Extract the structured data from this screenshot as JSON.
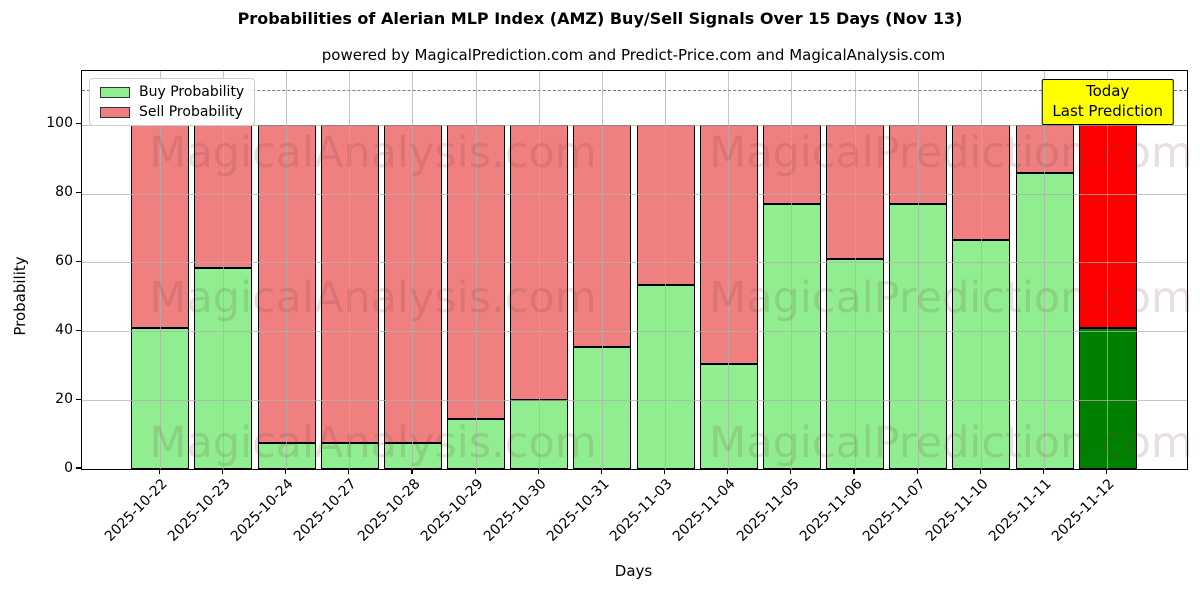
{
  "title": "Probabilities of Alerian MLP Index (AMZ) Buy/Sell Signals Over 15 Days (Nov 13)",
  "subtitle": "powered by MagicalPrediction.com and Predict-Price.com and MagicalAnalysis.com",
  "legend": {
    "items": [
      {
        "label": "Buy Probability",
        "color": "#90ee90"
      },
      {
        "label": "Sell Probability",
        "color": "#f08080"
      }
    ]
  },
  "annotation": {
    "line1": "Today",
    "line2": "Last Prediction",
    "bg_color": "#ffff00"
  },
  "watermarks": {
    "left_text": "MagicalAnalysis.com",
    "right_text": "MagicalPrediction.com"
  },
  "chart_data": {
    "type": "bar",
    "stacked": true,
    "grid": true,
    "legend_position": "upper left",
    "xlabel": "Days",
    "ylabel": "Probability",
    "ylim": [
      0,
      116
    ],
    "yticks": [
      0,
      20,
      40,
      60,
      80,
      100
    ],
    "dashed_line_y": 110,
    "categories": [
      "2025-10-22",
      "2025-10-23",
      "2025-10-24",
      "2025-10-27",
      "2025-10-28",
      "2025-10-29",
      "2025-10-30",
      "2025-10-31",
      "2025-11-03",
      "2025-11-04",
      "2025-11-05",
      "2025-11-06",
      "2025-11-07",
      "2025-11-10",
      "2025-11-11",
      "2025-11-12"
    ],
    "series": [
      {
        "name": "Buy Probability",
        "values": [
          41,
          58.5,
          7.5,
          7.5,
          7.5,
          14.5,
          20,
          35.5,
          53.5,
          30.5,
          77,
          61,
          77,
          66.5,
          86,
          41
        ]
      },
      {
        "name": "Sell Probability",
        "values": [
          59,
          41.5,
          92.5,
          92.5,
          92.5,
          85.5,
          80,
          64.5,
          46.5,
          69.5,
          23,
          39,
          23,
          33.5,
          14,
          59
        ]
      }
    ],
    "today_index": 15,
    "colors": {
      "buy": "#90ee90",
      "sell": "#f08080",
      "today_buy": "#008000",
      "today_sell": "#ff0000",
      "bar_edge": "#000000",
      "grid": "#b0b0b0",
      "dashed_line": "#7a7a7a"
    }
  }
}
